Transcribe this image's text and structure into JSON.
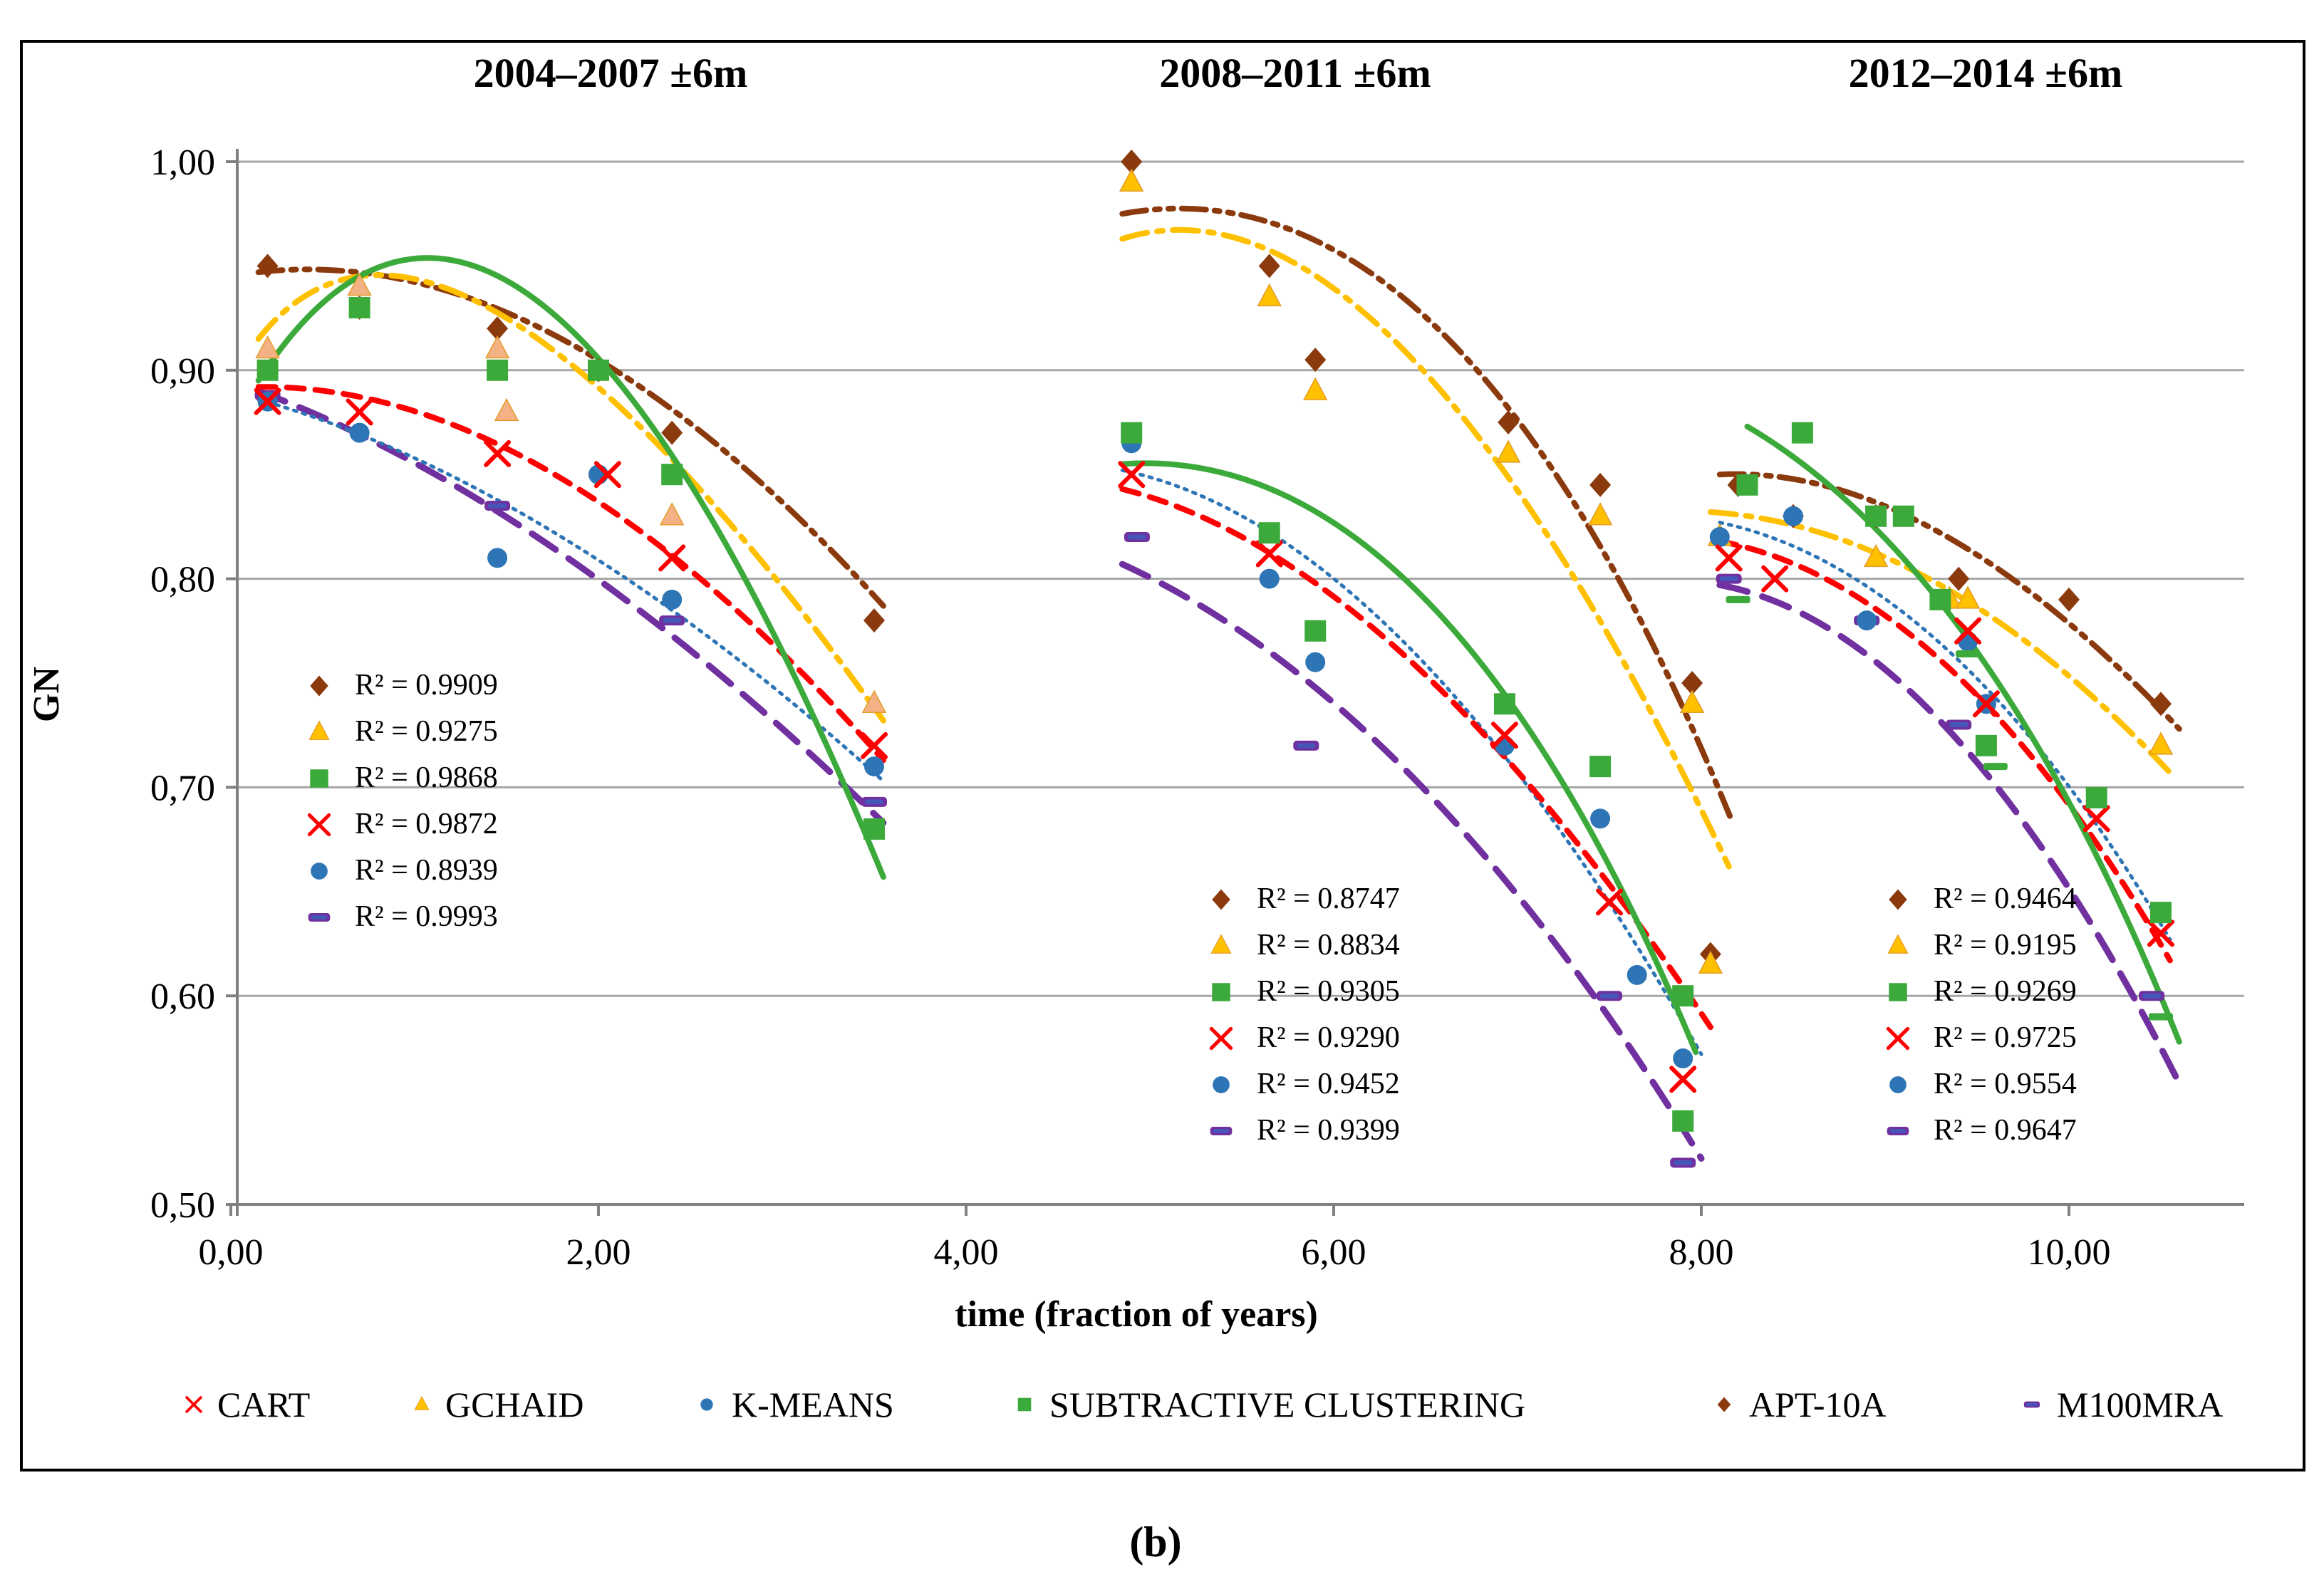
{
  "caption": "(b)",
  "chart_data": {
    "type": "scatter",
    "title": "",
    "xlabel": "time (fraction of years)",
    "ylabel": "GN",
    "xlim": [
      0,
      10.95
    ],
    "ylim": [
      0.5,
      1.0
    ],
    "grid": "horizontal-only",
    "xticks": [
      {
        "v": 0,
        "label": "0,00"
      },
      {
        "v": 2,
        "label": "2,00"
      },
      {
        "v": 4,
        "label": "4,00"
      },
      {
        "v": 6,
        "label": "6,00"
      },
      {
        "v": 8,
        "label": "8,00"
      },
      {
        "v": 10,
        "label": "10,00"
      }
    ],
    "yticks": [
      {
        "v": 0.5,
        "label": "0,50"
      },
      {
        "v": 0.6,
        "label": "0,60"
      },
      {
        "v": 0.7,
        "label": "0,70"
      },
      {
        "v": 0.8,
        "label": "0,80"
      },
      {
        "v": 0.9,
        "label": "0,90"
      },
      {
        "v": 1.0,
        "label": "1,00"
      }
    ],
    "panels": [
      {
        "title": "2004–2007 ±6m",
        "r2": [
          {
            "series": "APT-10A",
            "marker": "diamond",
            "text": "R² = 0.9909"
          },
          {
            "series": "GCHAID",
            "marker": "triangle",
            "text": "R² = 0.9275"
          },
          {
            "series": "SUBTRACTIVE CLUSTERING",
            "marker": "square",
            "text": "R² = 0.9868"
          },
          {
            "series": "CART",
            "marker": "x-cross",
            "text": "R² = 0.9872"
          },
          {
            "series": "K-MEANS",
            "marker": "circle",
            "text": "R² = 0.8939"
          },
          {
            "series": "M100MRA",
            "marker": "dash",
            "text": "R² = 0.9993"
          }
        ]
      },
      {
        "title": "2008–2011 ±6m",
        "r2": [
          {
            "series": "APT-10A",
            "marker": "diamond",
            "text": "R² = 0.8747"
          },
          {
            "series": "GCHAID",
            "marker": "triangle",
            "text": "R² = 0.8834"
          },
          {
            "series": "SUBTRACTIVE CLUSTERING",
            "marker": "square",
            "text": "R² = 0.9305"
          },
          {
            "series": "CART",
            "marker": "x-cross",
            "text": "R² = 0.9290"
          },
          {
            "series": "K-MEANS",
            "marker": "circle",
            "text": "R² = 0.9452"
          },
          {
            "series": "M100MRA",
            "marker": "dash",
            "text": "R² = 0.9399"
          }
        ]
      },
      {
        "title": "2012–2014 ±6m",
        "r2": [
          {
            "series": "APT-10A",
            "marker": "diamond",
            "text": "R² = 0.9464"
          },
          {
            "series": "GCHAID",
            "marker": "triangle",
            "text": "R² = 0.9195"
          },
          {
            "series": "SUBTRACTIVE CLUSTERING",
            "marker": "square",
            "text": "R² = 0.9269"
          },
          {
            "series": "CART",
            "marker": "x-cross",
            "text": "R² = 0.9725"
          },
          {
            "series": "K-MEANS",
            "marker": "circle",
            "text": "R² = 0.9554"
          },
          {
            "series": "M100MRA",
            "marker": "dash",
            "text": "R² = 0.9647"
          }
        ]
      }
    ],
    "series": [
      {
        "name": "APT-10A",
        "color": "#8B3A0E",
        "marker": "diamond",
        "line_style": "dashdotdot",
        "panels": [
          {
            "points": [
              [
                0.2,
                0.95
              ],
              [
                0.7,
                0.93
              ],
              [
                1.45,
                0.92
              ],
              [
                2.0,
                0.9
              ],
              [
                2.4,
                0.87
              ],
              [
                3.5,
                0.78
              ]
            ],
            "trend": [
              [
                0.15,
                0.947
              ],
              [
                1.8,
                0.915
              ],
              [
                3.55,
                0.787
              ]
            ]
          },
          {
            "points": [
              [
                4.9,
                1.0
              ],
              [
                5.65,
                0.95
              ],
              [
                5.9,
                0.905
              ],
              [
                6.95,
                0.875
              ],
              [
                7.45,
                0.845
              ],
              [
                7.95,
                0.75
              ],
              [
                8.05,
                0.62
              ]
            ],
            "trend": [
              [
                4.85,
                0.975
              ],
              [
                6.6,
                0.917
              ],
              [
                8.17,
                0.683
              ]
            ]
          },
          {
            "points": [
              [
                8.2,
                0.845
              ],
              [
                8.5,
                0.83
              ],
              [
                8.95,
                0.83
              ],
              [
                9.4,
                0.8
              ],
              [
                10.0,
                0.79
              ],
              [
                10.5,
                0.74
              ]
            ],
            "trend": [
              [
                8.1,
                0.85
              ],
              [
                9.3,
                0.822
              ],
              [
                10.6,
                0.728
              ]
            ]
          }
        ]
      },
      {
        "name": "GCHAID",
        "color": "#FFC000",
        "marker": "triangle",
        "line_style": "dashdot",
        "marker_fill_by_panel": [
          "#F4B183",
          "#FFC000",
          "#FFC000"
        ],
        "panels": [
          {
            "points": [
              [
                0.2,
                0.91
              ],
              [
                0.7,
                0.94
              ],
              [
                1.45,
                0.91
              ],
              [
                1.5,
                0.88
              ],
              [
                2.4,
                0.83
              ],
              [
                3.5,
                0.74
              ]
            ],
            "trend": [
              [
                0.15,
                0.915
              ],
              [
                1.5,
                0.925
              ],
              [
                3.55,
                0.732
              ]
            ]
          },
          {
            "points": [
              [
                4.9,
                0.99
              ],
              [
                5.65,
                0.935
              ],
              [
                5.9,
                0.89
              ],
              [
                6.95,
                0.86
              ],
              [
                7.45,
                0.83
              ],
              [
                7.95,
                0.74
              ],
              [
                8.05,
                0.615
              ]
            ],
            "trend": [
              [
                4.85,
                0.963
              ],
              [
                6.4,
                0.908
              ],
              [
                8.15,
                0.662
              ]
            ]
          },
          {
            "points": [
              [
                8.1,
                0.82
              ],
              [
                8.95,
                0.81
              ],
              [
                9.35,
                0.79
              ],
              [
                9.45,
                0.79
              ],
              [
                10.5,
                0.72
              ]
            ],
            "trend": [
              [
                8.05,
                0.832
              ],
              [
                9.3,
                0.797
              ],
              [
                10.55,
                0.707
              ]
            ]
          }
        ]
      },
      {
        "name": "M100MRA",
        "color": "#7030A0",
        "marker": "dash",
        "line_style": "longdash",
        "panels": [
          {
            "points": [
              [
                0.2,
                0.888
              ],
              [
                1.45,
                0.835
              ],
              [
                2.4,
                0.78
              ],
              [
                3.5,
                0.693
              ]
            ],
            "trend": [
              [
                0.15,
                0.89
              ],
              [
                1.8,
                0.812
              ],
              [
                3.55,
                0.683
              ]
            ]
          },
          {
            "points": [
              [
                4.93,
                0.82
              ],
              [
                5.85,
                0.72
              ],
              [
                7.5,
                0.6
              ],
              [
                7.9,
                0.52
              ]
            ],
            "trend": [
              [
                4.85,
                0.807
              ],
              [
                6.45,
                0.703
              ],
              [
                8.0,
                0.522
              ]
            ]
          },
          {
            "points": [
              [
                8.15,
                0.8
              ],
              [
                8.9,
                0.78
              ],
              [
                9.4,
                0.73
              ],
              [
                10.45,
                0.6
              ]
            ],
            "trend": [
              [
                8.1,
                0.797
              ],
              [
                9.35,
                0.727
              ],
              [
                10.6,
                0.558
              ]
            ]
          }
        ]
      },
      {
        "name": "K-MEANS",
        "color": "#2E75B6",
        "marker": "circle",
        "line_style": "dotted",
        "panels": [
          {
            "points": [
              [
                0.2,
                0.885
              ],
              [
                0.7,
                0.87
              ],
              [
                1.45,
                0.81
              ],
              [
                2.0,
                0.85
              ],
              [
                2.4,
                0.79
              ],
              [
                3.5,
                0.71
              ]
            ],
            "trend": [
              [
                0.15,
                0.886
              ],
              [
                1.8,
                0.82
              ],
              [
                3.55,
                0.703
              ]
            ]
          },
          {
            "points": [
              [
                4.9,
                0.865
              ],
              [
                5.65,
                0.8
              ],
              [
                5.9,
                0.76
              ],
              [
                6.93,
                0.72
              ],
              [
                7.45,
                0.685
              ],
              [
                7.65,
                0.61
              ],
              [
                7.9,
                0.57
              ]
            ],
            "trend": [
              [
                4.85,
                0.852
              ],
              [
                6.4,
                0.768
              ],
              [
                8.0,
                0.572
              ]
            ]
          },
          {
            "points": [
              [
                8.1,
                0.82
              ],
              [
                8.5,
                0.83
              ],
              [
                8.9,
                0.78
              ],
              [
                9.45,
                0.77
              ],
              [
                9.55,
                0.74
              ]
            ],
            "trend": [
              [
                8.1,
                0.827
              ],
              [
                9.35,
                0.765
              ],
              [
                10.55,
                0.627
              ]
            ]
          }
        ]
      },
      {
        "name": "CART",
        "color": "#FF0000",
        "marker": "x-cross",
        "line_style": "dashed",
        "panels": [
          {
            "points": [
              [
                0.2,
                0.885
              ],
              [
                0.7,
                0.88
              ],
              [
                1.45,
                0.86
              ],
              [
                2.05,
                0.85
              ],
              [
                2.4,
                0.81
              ],
              [
                3.5,
                0.72
              ]
            ],
            "trend": [
              [
                0.15,
                0.892
              ],
              [
                1.8,
                0.848
              ],
              [
                3.55,
                0.713
              ]
            ]
          },
          {
            "points": [
              [
                4.9,
                0.85
              ],
              [
                5.65,
                0.812
              ],
              [
                6.93,
                0.725
              ],
              [
                7.5,
                0.645
              ],
              [
                7.9,
                0.56
              ]
            ],
            "trend": [
              [
                4.85,
                0.843
              ],
              [
                6.4,
                0.762
              ],
              [
                8.05,
                0.585
              ]
            ]
          },
          {
            "points": [
              [
                8.15,
                0.81
              ],
              [
                8.4,
                0.8
              ],
              [
                9.45,
                0.775
              ],
              [
                9.55,
                0.74
              ],
              [
                10.15,
                0.685
              ],
              [
                10.5,
                0.63
              ]
            ],
            "trend": [
              [
                8.1,
                0.818
              ],
              [
                9.35,
                0.757
              ],
              [
                10.55,
                0.617
              ]
            ]
          }
        ]
      },
      {
        "name": "SUBTRACTIVE CLUSTERING",
        "color": "#3BAA3B",
        "marker": "square",
        "line_style": "solid",
        "panels": [
          {
            "points": [
              [
                0.2,
                0.9
              ],
              [
                0.7,
                0.93
              ],
              [
                1.45,
                0.9
              ],
              [
                2.0,
                0.9
              ],
              [
                2.4,
                0.85
              ],
              [
                3.5,
                0.68
              ]
            ],
            "trend": [
              [
                0.15,
                0.895
              ],
              [
                1.7,
                0.931
              ],
              [
                3.55,
                0.657
              ]
            ],
            "dash_points": []
          },
          {
            "points": [
              [
                4.9,
                0.87
              ],
              [
                5.65,
                0.822
              ],
              [
                5.9,
                0.775
              ],
              [
                6.93,
                0.74
              ],
              [
                7.45,
                0.71
              ],
              [
                7.9,
                0.6
              ],
              [
                7.9,
                0.54
              ]
            ],
            "trend": [
              [
                4.85,
                0.855
              ],
              [
                6.5,
                0.79
              ],
              [
                7.97,
                0.573
              ]
            ],
            "dash_points": []
          },
          {
            "points": [
              [
                8.25,
                0.845
              ],
              [
                8.55,
                0.87
              ],
              [
                8.95,
                0.83
              ],
              [
                9.1,
                0.83
              ],
              [
                9.3,
                0.79
              ],
              [
                9.55,
                0.72
              ],
              [
                10.15,
                0.695
              ],
              [
                10.5,
                0.64
              ]
            ],
            "trend": [
              [
                8.25,
                0.873
              ],
              [
                9.5,
                0.765
              ],
              [
                10.6,
                0.578
              ]
            ],
            "dash_points": [
              [
                8.2,
                0.79
              ],
              [
                9.45,
                0.764
              ],
              [
                9.6,
                0.71
              ],
              [
                10.5,
                0.59
              ]
            ]
          }
        ]
      }
    ],
    "legend": {
      "position": "bottom",
      "items": [
        {
          "label": "CART",
          "marker": "x-cross",
          "color": "#FF0000"
        },
        {
          "label": "GCHAID",
          "marker": "triangle",
          "color": "#FFC000"
        },
        {
          "label": "K-MEANS",
          "marker": "circle",
          "color": "#2E75B6"
        },
        {
          "label": "SUBTRACTIVE CLUSTERING",
          "marker": "square",
          "color": "#3BAA3B"
        },
        {
          "label": "APT-10A",
          "marker": "diamond",
          "color": "#8B3A0E"
        },
        {
          "label": "M100MRA",
          "marker": "dash",
          "color": "#7030A0"
        }
      ]
    },
    "colors": {
      "grid": "#A6A6A6",
      "axis": "#808080",
      "border": "#000000",
      "text": "#000000"
    }
  }
}
